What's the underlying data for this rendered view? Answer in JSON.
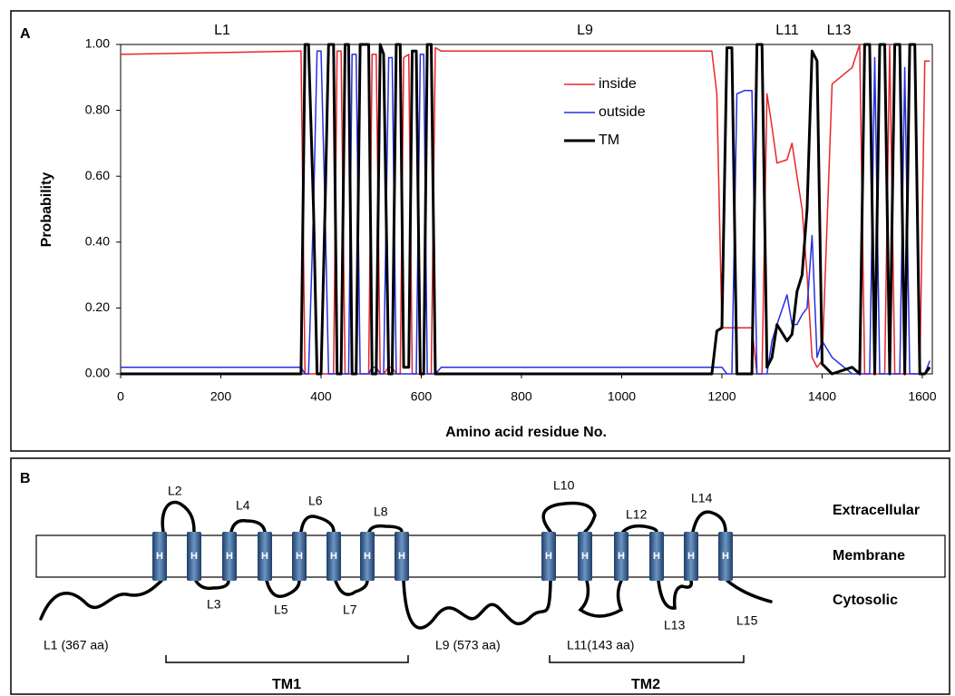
{
  "chart_data": {
    "type": "line",
    "panel_label": "A",
    "x_label": "Amino acid residue No.",
    "y_label": "Probability",
    "annotations": [
      "L1",
      "L9",
      "L11",
      "L13"
    ],
    "xlim": [
      0,
      1620
    ],
    "ylim": [
      0,
      1
    ],
    "xticks": [
      0,
      200,
      400,
      600,
      800,
      1000,
      1200,
      1400,
      1600
    ],
    "yticks": [
      {
        "value": 0,
        "label": "0.00"
      },
      {
        "value": 0.2,
        "label": "0.20"
      },
      {
        "value": 0.4,
        "label": "0.40"
      },
      {
        "value": 0.6,
        "label": "0.60"
      },
      {
        "value": 0.8,
        "label": "0.80"
      },
      {
        "value": 1,
        "label": "1.00"
      }
    ],
    "x": [
      0,
      360,
      368,
      375,
      385,
      392,
      400,
      408,
      415,
      425,
      432,
      440,
      448,
      455,
      462,
      470,
      478,
      485,
      495,
      502,
      510,
      518,
      525,
      535,
      542,
      550,
      558,
      565,
      575,
      582,
      590,
      598,
      605,
      612,
      620,
      628,
      640,
      1180,
      1190,
      1200,
      1210,
      1220,
      1230,
      1245,
      1260,
      1270,
      1280,
      1290,
      1300,
      1310,
      1330,
      1340,
      1350,
      1360,
      1370,
      1380,
      1390,
      1400,
      1420,
      1460,
      1475,
      1485,
      1495,
      1505,
      1515,
      1525,
      1535,
      1545,
      1555,
      1565,
      1575,
      1585,
      1595,
      1605,
      1615
    ],
    "series": [
      {
        "name": "inside",
        "color": "#e8262a",
        "values": [
          0.97,
          0.98,
          0,
          0,
          0,
          0,
          0,
          0,
          0,
          0,
          0.98,
          0.98,
          0,
          0,
          0,
          0,
          0,
          0,
          0,
          0.97,
          0.97,
          0,
          0,
          0.02,
          0.02,
          0,
          0,
          0.96,
          0.97,
          0,
          0,
          0,
          0,
          0,
          0,
          0.99,
          0.98,
          0.98,
          0.85,
          0.14,
          0.14,
          0.14,
          0.14,
          0.14,
          0.14,
          0,
          0,
          0.85,
          0.75,
          0.64,
          0.65,
          0.7,
          0.6,
          0.5,
          0.3,
          0.05,
          0.02,
          0.04,
          0.88,
          0.93,
          1,
          0,
          0,
          0,
          0,
          0,
          1,
          0,
          0,
          0,
          0,
          0,
          0,
          0.95,
          0.95
        ]
      },
      {
        "name": "outside",
        "color": "#2430e0",
        "values": [
          0.02,
          0.02,
          0,
          0,
          0.5,
          0.98,
          0.98,
          0.5,
          0,
          0,
          0,
          0,
          0,
          0,
          0.97,
          0.97,
          0,
          0,
          0,
          0.02,
          0.02,
          0,
          0,
          0.96,
          0.96,
          0,
          0,
          0,
          0,
          0,
          0,
          0.97,
          0.97,
          0,
          0,
          0,
          0.02,
          0.02,
          0.02,
          0.02,
          0,
          0,
          0.85,
          0.86,
          0.86,
          0,
          0,
          0,
          0.1,
          0.15,
          0.24,
          0.15,
          0.15,
          0.18,
          0.2,
          0.42,
          0.05,
          0.1,
          0.05,
          0,
          0,
          0,
          0,
          0.96,
          0,
          0,
          0,
          0,
          0,
          0.93,
          0,
          0,
          0,
          0,
          0.04
        ]
      },
      {
        "name": "TM",
        "color": "#000000",
        "values": [
          0,
          0,
          1,
          1,
          0.5,
          0,
          0,
          0.5,
          1,
          1,
          0,
          0,
          1,
          1,
          0,
          0,
          1,
          1,
          1,
          0,
          0,
          1,
          0.97,
          0,
          0,
          1,
          1,
          0.02,
          0.02,
          0.98,
          0.98,
          0,
          0,
          1,
          1,
          0,
          0,
          0,
          0.13,
          0.14,
          0.99,
          0.99,
          0,
          0,
          0,
          1,
          1,
          0.02,
          0.05,
          0.15,
          0.1,
          0.12,
          0.25,
          0.3,
          0.5,
          0.98,
          0.95,
          0.03,
          0,
          0.02,
          0,
          1,
          1,
          0,
          1,
          1,
          0,
          1,
          1,
          0,
          1,
          1,
          0,
          0,
          0.02
        ]
      }
    ]
  },
  "diagram": {
    "panel_label": "B",
    "helix_label": "H",
    "layers": [
      "Extracellular",
      "Membrane",
      "Cytosolic"
    ],
    "loops": [
      "L1 (367 aa)",
      "L2",
      "L3",
      "L4",
      "L5",
      "L6",
      "L7",
      "L8",
      "L9 (573 aa)",
      "L10",
      "L11(143 aa)",
      "L12",
      "L13",
      "L14",
      "L15"
    ],
    "domains": [
      "TM1",
      "TM2"
    ]
  }
}
